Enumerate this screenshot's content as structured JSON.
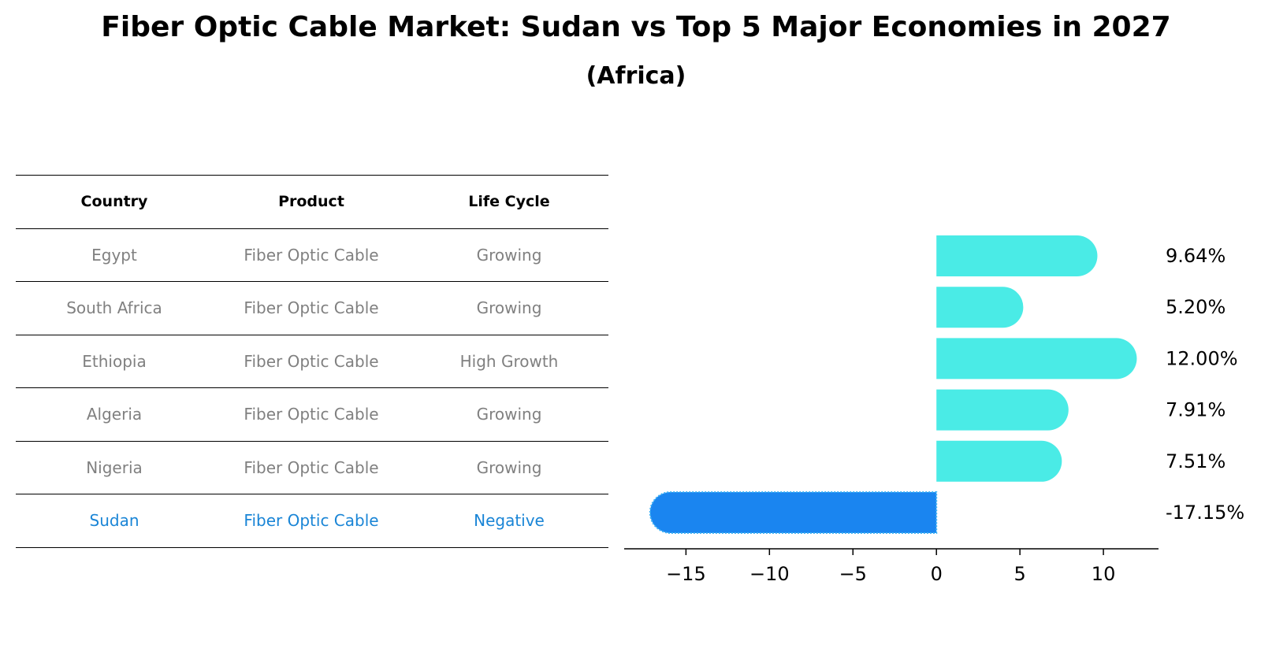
{
  "title": "Fiber Optic Cable Market: Sudan vs Top 5 Major Economies in 2027",
  "subtitle": "(Africa)",
  "table": {
    "headers": [
      "Country",
      "Product",
      "Life Cycle"
    ],
    "rows": [
      {
        "country": "Egypt",
        "product": "Fiber Optic Cable",
        "life_cycle": "Growing"
      },
      {
        "country": "South Africa",
        "product": "Fiber Optic Cable",
        "life_cycle": "Growing"
      },
      {
        "country": "Ethiopia",
        "product": "Fiber Optic Cable",
        "life_cycle": "High Growth"
      },
      {
        "country": "Algeria",
        "product": "Fiber Optic Cable",
        "life_cycle": "Growing"
      },
      {
        "country": "Nigeria",
        "product": "Fiber Optic Cable",
        "life_cycle": "Growing"
      },
      {
        "country": "Sudan",
        "product": "Fiber Optic Cable",
        "life_cycle": "Negative"
      }
    ]
  },
  "chart_data": {
    "type": "bar",
    "orientation": "horizontal",
    "categories": [
      "Egypt",
      "South Africa",
      "Ethiopia",
      "Algeria",
      "Nigeria",
      "Sudan"
    ],
    "values": [
      9.64,
      5.2,
      12.0,
      7.91,
      7.51,
      -17.15
    ],
    "value_labels": [
      "9.64%",
      "5.20%",
      "12.00%",
      "7.91%",
      "7.51%",
      "-17.15%"
    ],
    "highlight": "Sudan",
    "colors": {
      "default": "#4aebe6",
      "highlight": "#1a85f0"
    },
    "xlim": [
      -18.7,
      13.3
    ],
    "xticks": [
      -15,
      -10,
      -5,
      0,
      5,
      10
    ],
    "xtick_labels": [
      "−15",
      "−10",
      "−5",
      "0",
      "5",
      "10"
    ],
    "xlabel": "",
    "ylabel": ""
  }
}
